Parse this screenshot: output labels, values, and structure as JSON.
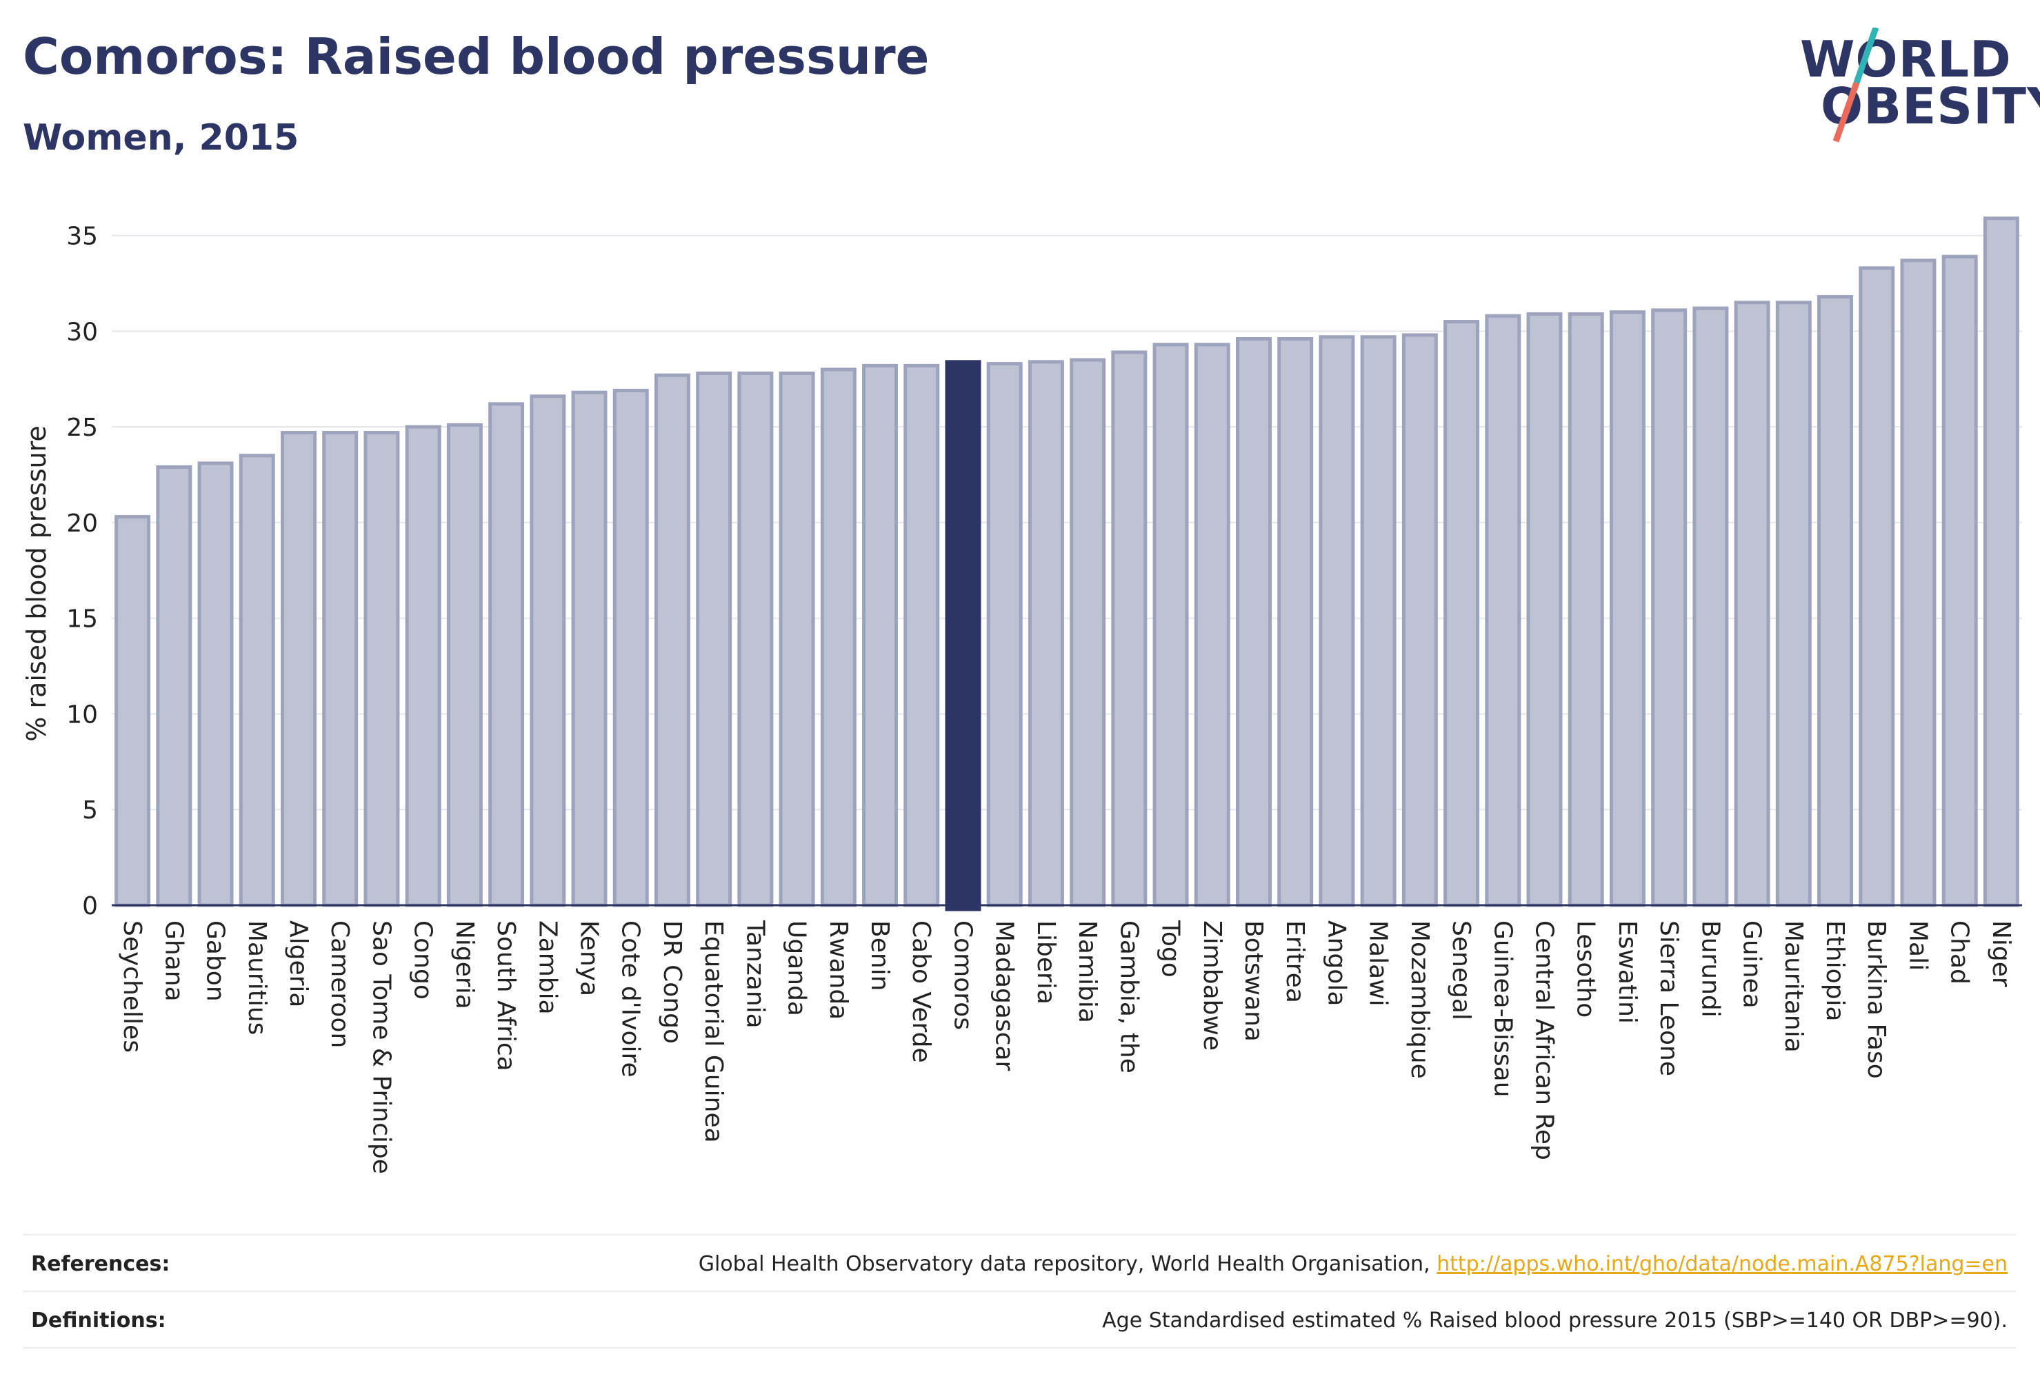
{
  "header": {
    "title": "Comoros: Raised blood pressure",
    "subtitle": "Women, 2015"
  },
  "logo": {
    "line1": "WORLD",
    "line2": "OBESITY"
  },
  "colors": {
    "highlight": "#2c3563",
    "bar_fill": "#bfc2d2",
    "bar_stroke": "#9ea3bd",
    "logo_teal": "#2fb3b5",
    "logo_coral": "#ea6b5a",
    "link": "#e7a817"
  },
  "chart_data": {
    "type": "bar",
    "ylabel": "% raised blood pressure",
    "xlabel": "",
    "ylim": [
      0,
      36.5
    ],
    "yticks": [
      0,
      5,
      10,
      15,
      20,
      25,
      30,
      35
    ],
    "grid": true,
    "highlight": "Comoros",
    "categories": [
      "Seychelles",
      "Ghana",
      "Gabon",
      "Mauritius",
      "Algeria",
      "Cameroon",
      "Sao Tome & Principe",
      "Congo",
      "Nigeria",
      "South Africa",
      "Zambia",
      "Kenya",
      "Cote d'Ivoire",
      "DR Congo",
      "Equatorial Guinea",
      "Tanzania",
      "Uganda",
      "Rwanda",
      "Benin",
      "Cabo Verde",
      "Comoros",
      "Madagascar",
      "Liberia",
      "Namibia",
      "Gambia, the",
      "Togo",
      "Zimbabwe",
      "Botswana",
      "Eritrea",
      "Angola",
      "Malawi",
      "Mozambique",
      "Senegal",
      "Guinea-Bissau",
      "Central African Rep",
      "Lesotho",
      "Eswatini",
      "Sierra Leone",
      "Burundi",
      "Guinea",
      "Mauritania",
      "Ethiopia",
      "Burkina Faso",
      "Mali",
      "Chad",
      "Niger"
    ],
    "values": [
      20.3,
      22.9,
      23.1,
      23.5,
      24.7,
      24.7,
      24.7,
      25.0,
      25.1,
      26.2,
      26.6,
      26.8,
      26.9,
      27.7,
      27.8,
      27.8,
      27.8,
      28.0,
      28.2,
      28.2,
      28.4,
      28.3,
      28.4,
      28.5,
      28.9,
      29.3,
      29.3,
      29.6,
      29.6,
      29.7,
      29.7,
      29.8,
      30.5,
      30.8,
      30.9,
      30.9,
      31.0,
      31.1,
      31.2,
      31.5,
      31.5,
      31.8,
      33.3,
      33.7,
      33.9,
      35.9
    ]
  },
  "footer": {
    "references_label": "References:",
    "references_text": "Global Health Observatory data repository, World Health Organisation, ",
    "references_link": "http://apps.who.int/gho/data/node.main.A875?lang=en",
    "definitions_label": "Definitions:",
    "definitions_text": "Age Standardised estimated % Raised blood pressure 2015 (SBP>=140 OR DBP>=90)."
  }
}
